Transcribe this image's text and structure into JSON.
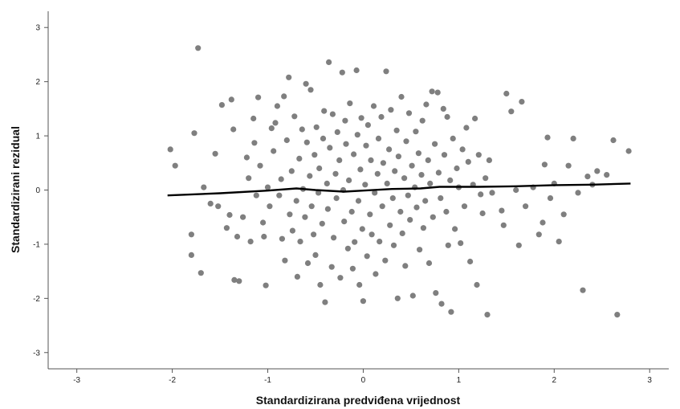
{
  "chart_data": {
    "type": "scatter",
    "xlabel": "Standardizirana predviđena vrijednost",
    "ylabel": "Standardizirani rezidual",
    "xlim": [
      -3.3,
      3.2
    ],
    "ylim": [
      -3.3,
      3.3
    ],
    "xticks": [
      -3,
      -2,
      -1,
      0,
      1,
      2,
      3
    ],
    "yticks": [
      -3,
      -2,
      -1,
      0,
      1,
      2,
      3
    ],
    "grid": false,
    "colors": {
      "points": "#7f7f7f",
      "fit_line": "#000000"
    },
    "fit_line": {
      "x": [
        -2.05,
        -1.5,
        -1.0,
        -0.7,
        -0.5,
        -0.2,
        0.0,
        0.3,
        0.6,
        0.8,
        1.2,
        1.6,
        2.0,
        2.4,
        2.8
      ],
      "y": [
        -0.1,
        -0.06,
        -0.01,
        0.03,
        0.0,
        -0.03,
        -0.01,
        0.02,
        0.03,
        0.06,
        0.06,
        0.07,
        0.09,
        0.1,
        0.12
      ]
    },
    "points": [
      [
        -2.02,
        0.75
      ],
      [
        -1.97,
        0.45
      ],
      [
        -1.8,
        -0.82
      ],
      [
        -1.8,
        -1.2
      ],
      [
        -1.77,
        1.05
      ],
      [
        -1.73,
        2.62
      ],
      [
        -1.7,
        -1.53
      ],
      [
        -1.67,
        0.05
      ],
      [
        -1.6,
        -0.25
      ],
      [
        -1.55,
        0.67
      ],
      [
        -1.52,
        -0.3
      ],
      [
        -1.48,
        1.57
      ],
      [
        -1.43,
        -0.7
      ],
      [
        -1.4,
        -0.46
      ],
      [
        -1.38,
        1.67
      ],
      [
        -1.36,
        1.12
      ],
      [
        -1.35,
        -1.66
      ],
      [
        -1.32,
        -0.86
      ],
      [
        -1.3,
        -1.68
      ],
      [
        -1.26,
        -0.5
      ],
      [
        -1.22,
        0.6
      ],
      [
        -1.2,
        0.22
      ],
      [
        -1.18,
        -0.95
      ],
      [
        -1.15,
        1.32
      ],
      [
        -1.14,
        0.87
      ],
      [
        -1.12,
        -0.1
      ],
      [
        -1.1,
        1.71
      ],
      [
        -1.08,
        0.45
      ],
      [
        -1.05,
        -0.6
      ],
      [
        -1.04,
        -0.86
      ],
      [
        -1.02,
        -1.76
      ],
      [
        -1.0,
        0.05
      ],
      [
        -0.98,
        -0.3
      ],
      [
        -0.96,
        1.14
      ],
      [
        -0.94,
        0.72
      ],
      [
        -0.92,
        1.24
      ],
      [
        -0.9,
        1.55
      ],
      [
        -0.88,
        -0.1
      ],
      [
        -0.86,
        0.2
      ],
      [
        -0.85,
        -0.9
      ],
      [
        -0.83,
        1.73
      ],
      [
        -0.82,
        -1.3
      ],
      [
        -0.8,
        0.92
      ],
      [
        -0.78,
        2.08
      ],
      [
        -0.77,
        -0.45
      ],
      [
        -0.75,
        0.35
      ],
      [
        -0.74,
        -0.75
      ],
      [
        -0.72,
        1.36
      ],
      [
        -0.7,
        -0.2
      ],
      [
        -0.69,
        -1.6
      ],
      [
        -0.67,
        0.58
      ],
      [
        -0.66,
        -0.95
      ],
      [
        -0.64,
        1.12
      ],
      [
        -0.63,
        0.02
      ],
      [
        -0.61,
        -0.5
      ],
      [
        -0.6,
        1.96
      ],
      [
        -0.59,
        0.88
      ],
      [
        -0.58,
        -1.35
      ],
      [
        -0.56,
        0.26
      ],
      [
        -0.55,
        1.85
      ],
      [
        -0.54,
        -0.3
      ],
      [
        -0.52,
        -0.82
      ],
      [
        -0.51,
        0.65
      ],
      [
        -0.5,
        -1.2
      ],
      [
        -0.49,
        1.16
      ],
      [
        -0.47,
        -0.05
      ],
      [
        -0.46,
        0.4
      ],
      [
        -0.45,
        -1.75
      ],
      [
        -0.43,
        -0.62
      ],
      [
        -0.42,
        0.95
      ],
      [
        -0.41,
        1.46
      ],
      [
        -0.4,
        -2.07
      ],
      [
        -0.38,
        0.12
      ],
      [
        -0.37,
        -0.35
      ],
      [
        -0.36,
        2.36
      ],
      [
        -0.35,
        0.78
      ],
      [
        -0.33,
        -1.42
      ],
      [
        -0.32,
        1.4
      ],
      [
        -0.31,
        -0.88
      ],
      [
        -0.29,
        0.3
      ],
      [
        -0.28,
        -0.15
      ],
      [
        -0.27,
        1.07
      ],
      [
        -0.25,
        0.55
      ],
      [
        -0.24,
        -1.62
      ],
      [
        -0.22,
        2.17
      ],
      [
        -0.21,
        0.0
      ],
      [
        -0.2,
        -0.58
      ],
      [
        -0.19,
        1.28
      ],
      [
        -0.18,
        0.85
      ],
      [
        -0.16,
        -1.08
      ],
      [
        -0.15,
        0.18
      ],
      [
        -0.14,
        1.6
      ],
      [
        -0.12,
        -0.4
      ],
      [
        -0.11,
        -1.45
      ],
      [
        -0.1,
        0.66
      ],
      [
        -0.09,
        -0.96
      ],
      [
        -0.07,
        2.21
      ],
      [
        -0.06,
        1.02
      ],
      [
        -0.05,
        -0.2
      ],
      [
        -0.04,
        -1.75
      ],
      [
        -0.03,
        0.38
      ],
      [
        -0.02,
        1.33
      ],
      [
        -0.01,
        -0.72
      ],
      [
        0.0,
        -2.05
      ],
      [
        0.02,
        0.1
      ],
      [
        0.03,
        0.82
      ],
      [
        0.04,
        -1.22
      ],
      [
        0.05,
        1.2
      ],
      [
        0.07,
        -0.45
      ],
      [
        0.08,
        0.55
      ],
      [
        0.09,
        -0.82
      ],
      [
        0.11,
        1.55
      ],
      [
        0.12,
        -0.05
      ],
      [
        0.13,
        -1.55
      ],
      [
        0.15,
        0.3
      ],
      [
        0.16,
        0.95
      ],
      [
        0.17,
        -0.95
      ],
      [
        0.19,
        1.35
      ],
      [
        0.2,
        -0.3
      ],
      [
        0.21,
        0.5
      ],
      [
        0.23,
        -1.3
      ],
      [
        0.24,
        2.19
      ],
      [
        0.25,
        0.12
      ],
      [
        0.27,
        0.75
      ],
      [
        0.28,
        -0.65
      ],
      [
        0.29,
        1.48
      ],
      [
        0.31,
        -0.15
      ],
      [
        0.32,
        -1.02
      ],
      [
        0.33,
        0.35
      ],
      [
        0.35,
        1.1
      ],
      [
        0.36,
        -2.0
      ],
      [
        0.37,
        0.62
      ],
      [
        0.39,
        -0.4
      ],
      [
        0.4,
        1.72
      ],
      [
        0.41,
        -0.8
      ],
      [
        0.43,
        0.22
      ],
      [
        0.44,
        -1.4
      ],
      [
        0.45,
        0.9
      ],
      [
        0.47,
        -0.1
      ],
      [
        0.48,
        1.42
      ],
      [
        0.49,
        -0.55
      ],
      [
        0.51,
        0.45
      ],
      [
        0.52,
        -1.95
      ],
      [
        0.54,
        0.05
      ],
      [
        0.55,
        1.08
      ],
      [
        0.56,
        -0.32
      ],
      [
        0.58,
        0.68
      ],
      [
        0.59,
        -1.1
      ],
      [
        0.61,
        0.28
      ],
      [
        0.62,
        1.28
      ],
      [
        0.63,
        -0.7
      ],
      [
        0.65,
        -0.2
      ],
      [
        0.66,
        1.58
      ],
      [
        0.68,
        0.55
      ],
      [
        0.69,
        -1.35
      ],
      [
        0.7,
        0.12
      ],
      [
        0.72,
        1.82
      ],
      [
        0.73,
        -0.5
      ],
      [
        0.75,
        0.85
      ],
      [
        0.76,
        -1.9
      ],
      [
        0.78,
        1.8
      ],
      [
        0.79,
        0.32
      ],
      [
        0.81,
        -0.15
      ],
      [
        0.82,
        -2.1
      ],
      [
        0.84,
        1.5
      ],
      [
        0.85,
        0.65
      ],
      [
        0.87,
        -0.4
      ],
      [
        0.88,
        1.35
      ],
      [
        0.89,
        -1.02
      ],
      [
        0.91,
        0.18
      ],
      [
        0.92,
        -2.25
      ],
      [
        0.94,
        0.95
      ],
      [
        0.96,
        -0.72
      ],
      [
        0.98,
        0.4
      ],
      [
        1.0,
        0.05
      ],
      [
        1.02,
        -0.98
      ],
      [
        1.04,
        0.75
      ],
      [
        1.06,
        -0.3
      ],
      [
        1.08,
        1.15
      ],
      [
        1.1,
        0.52
      ],
      [
        1.12,
        -1.32
      ],
      [
        1.15,
        0.1
      ],
      [
        1.17,
        1.32
      ],
      [
        1.19,
        -1.75
      ],
      [
        1.21,
        0.65
      ],
      [
        1.23,
        -0.08
      ],
      [
        1.25,
        -0.43
      ],
      [
        1.28,
        0.22
      ],
      [
        1.3,
        -2.3
      ],
      [
        1.32,
        0.55
      ],
      [
        1.35,
        -0.05
      ],
      [
        1.45,
        -0.38
      ],
      [
        1.47,
        -0.65
      ],
      [
        1.5,
        1.78
      ],
      [
        1.55,
        1.45
      ],
      [
        1.6,
        0.0
      ],
      [
        1.63,
        -1.02
      ],
      [
        1.66,
        1.63
      ],
      [
        1.7,
        -0.3
      ],
      [
        1.78,
        0.05
      ],
      [
        1.84,
        -0.82
      ],
      [
        1.88,
        -0.6
      ],
      [
        1.9,
        0.47
      ],
      [
        1.93,
        0.97
      ],
      [
        1.96,
        -0.15
      ],
      [
        2.0,
        0.12
      ],
      [
        2.05,
        -0.95
      ],
      [
        2.1,
        -0.45
      ],
      [
        2.15,
        0.45
      ],
      [
        2.2,
        0.95
      ],
      [
        2.25,
        -0.05
      ],
      [
        2.3,
        -1.85
      ],
      [
        2.35,
        0.25
      ],
      [
        2.4,
        0.1
      ],
      [
        2.45,
        0.35
      ],
      [
        2.55,
        0.28
      ],
      [
        2.62,
        0.92
      ],
      [
        2.66,
        -2.3
      ],
      [
        2.78,
        0.72
      ]
    ]
  }
}
